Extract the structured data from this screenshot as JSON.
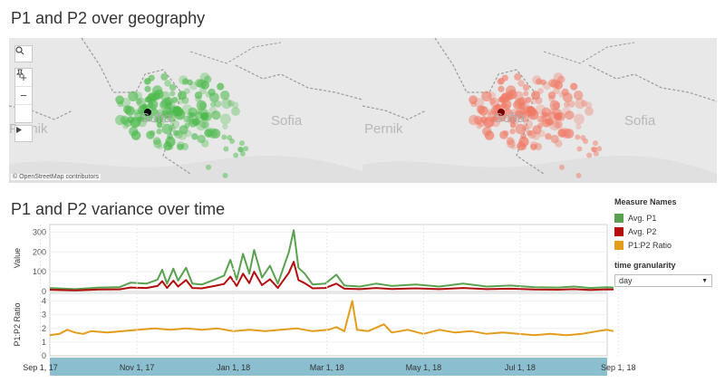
{
  "titles": {
    "map": "P1 and P2 over geography",
    "time": "P1 and P2 variance over time"
  },
  "map": {
    "places": {
      "sofia": "Sofia",
      "pernik": "Pernik",
      "boyana": "Sofia",
      "city": "Sofia"
    },
    "attribution": "© OpenStreetMap contributors",
    "left_color": "#4dba4d",
    "right_color": "#f07a66"
  },
  "legend": {
    "title": "Measure Names",
    "items": [
      {
        "label": "Avg. P1",
        "color": "#59a14f"
      },
      {
        "label": "Avg. P2",
        "color": "#b30d0d"
      },
      {
        "label": "P1:P2 Ratio",
        "color": "#e39c1b"
      }
    ],
    "granularity_title": "time granularity",
    "granularity_value": "day"
  },
  "chart_data": [
    {
      "type": "line",
      "ylabel": "Value",
      "ylim": [
        0,
        320
      ],
      "yticks": [
        "0",
        "100",
        "200",
        "300"
      ],
      "x_range": [
        "2017-09-13",
        "2018-08-25"
      ],
      "series": [
        {
          "name": "Avg. P1",
          "points": [
            [
              -6,
              18
            ],
            [
              10,
              12
            ],
            [
              25,
              20
            ],
            [
              38,
              22
            ],
            [
              45,
              45
            ],
            [
              55,
              40
            ],
            [
              62,
              60
            ],
            [
              65,
              110
            ],
            [
              68,
              40
            ],
            [
              72,
              115
            ],
            [
              75,
              55
            ],
            [
              80,
              120
            ],
            [
              84,
              40
            ],
            [
              90,
              35
            ],
            [
              98,
              60
            ],
            [
              104,
              80
            ],
            [
              108,
              160
            ],
            [
              112,
              60
            ],
            [
              116,
              190
            ],
            [
              120,
              90
            ],
            [
              123,
              210
            ],
            [
              128,
              70
            ],
            [
              133,
              130
            ],
            [
              138,
              40
            ],
            [
              145,
              200
            ],
            [
              148,
              310
            ],
            [
              151,
              120
            ],
            [
              155,
              90
            ],
            [
              160,
              35
            ],
            [
              168,
              40
            ],
            [
              175,
              85
            ],
            [
              180,
              30
            ],
            [
              190,
              25
            ],
            [
              200,
              40
            ],
            [
              210,
              28
            ],
            [
              225,
              35
            ],
            [
              240,
              25
            ],
            [
              255,
              40
            ],
            [
              270,
              25
            ],
            [
              285,
              30
            ],
            [
              300,
              22
            ],
            [
              315,
              20
            ],
            [
              325,
              25
            ],
            [
              335,
              18
            ],
            [
              346,
              22
            ],
            [
              350,
              20
            ]
          ]
        },
        {
          "name": "Avg. P2",
          "points": [
            [
              -6,
              9
            ],
            [
              10,
              6
            ],
            [
              25,
              10
            ],
            [
              38,
              11
            ],
            [
              45,
              20
            ],
            [
              55,
              18
            ],
            [
              62,
              28
            ],
            [
              65,
              52
            ],
            [
              68,
              18
            ],
            [
              72,
              55
            ],
            [
              75,
              25
            ],
            [
              80,
              58
            ],
            [
              84,
              18
            ],
            [
              90,
              16
            ],
            [
              98,
              28
            ],
            [
              104,
              38
            ],
            [
              108,
              75
            ],
            [
              112,
              28
            ],
            [
              116,
              90
            ],
            [
              120,
              42
            ],
            [
              123,
              100
            ],
            [
              128,
              32
            ],
            [
              133,
              62
            ],
            [
              138,
              18
            ],
            [
              145,
              95
            ],
            [
              148,
              150
            ],
            [
              151,
              58
            ],
            [
              155,
              42
            ],
            [
              160,
              16
            ],
            [
              168,
              18
            ],
            [
              175,
              40
            ],
            [
              180,
              14
            ],
            [
              190,
              12
            ],
            [
              200,
              18
            ],
            [
              210,
              13
            ],
            [
              225,
              16
            ],
            [
              240,
              12
            ],
            [
              255,
              18
            ],
            [
              270,
              12
            ],
            [
              285,
              14
            ],
            [
              300,
              10
            ],
            [
              315,
              9
            ],
            [
              325,
              12
            ],
            [
              335,
              8
            ],
            [
              346,
              11
            ],
            [
              350,
              10
            ]
          ]
        }
      ]
    },
    {
      "type": "line",
      "ylabel": "P1:P2 Ratio",
      "ylim": [
        0,
        4.3
      ],
      "yticks": [
        "0",
        "1",
        "2",
        "3",
        "4"
      ],
      "xticks": [
        "Sep 1, 17",
        "Nov 1, 17",
        "Jan 1, 18",
        "Mar 1, 18",
        "May 1, 18",
        "Jul 1, 18",
        "Sep 1, 18"
      ],
      "series": [
        {
          "name": "P1:P2 Ratio",
          "points": [
            [
              -6,
              1.5
            ],
            [
              0,
              1.6
            ],
            [
              5,
              1.9
            ],
            [
              10,
              1.7
            ],
            [
              15,
              1.6
            ],
            [
              20,
              1.8
            ],
            [
              30,
              1.7
            ],
            [
              40,
              1.8
            ],
            [
              50,
              1.9
            ],
            [
              60,
              2.0
            ],
            [
              70,
              1.9
            ],
            [
              80,
              2.0
            ],
            [
              90,
              1.9
            ],
            [
              100,
              2.0
            ],
            [
              110,
              1.8
            ],
            [
              120,
              1.9
            ],
            [
              130,
              1.8
            ],
            [
              140,
              1.9
            ],
            [
              150,
              2.0
            ],
            [
              160,
              1.8
            ],
            [
              170,
              1.9
            ],
            [
              175,
              2.1
            ],
            [
              180,
              1.8
            ],
            [
              185,
              4.0
            ],
            [
              188,
              1.9
            ],
            [
              195,
              1.8
            ],
            [
              205,
              2.3
            ],
            [
              210,
              1.7
            ],
            [
              220,
              1.9
            ],
            [
              230,
              1.6
            ],
            [
              240,
              1.9
            ],
            [
              250,
              1.7
            ],
            [
              260,
              1.8
            ],
            [
              270,
              1.6
            ],
            [
              280,
              1.7
            ],
            [
              290,
              1.6
            ],
            [
              300,
              1.5
            ],
            [
              310,
              1.6
            ],
            [
              320,
              1.5
            ],
            [
              330,
              1.6
            ],
            [
              340,
              1.8
            ],
            [
              346,
              1.9
            ],
            [
              350,
              1.8
            ]
          ]
        }
      ]
    }
  ]
}
